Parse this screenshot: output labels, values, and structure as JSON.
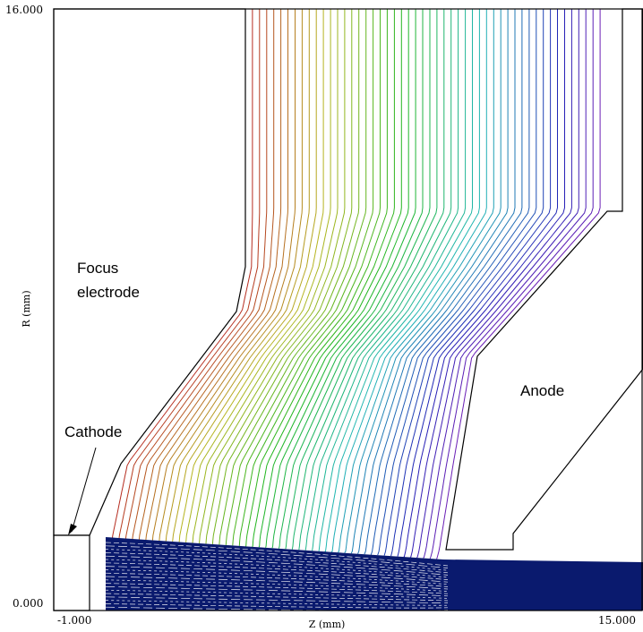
{
  "axes": {
    "xlabel": "Z (mm)",
    "ylabel": "R (mm)",
    "x_ticks": [
      "-1.000",
      "15.000"
    ],
    "y_ticks": [
      "16.000",
      "0.000"
    ],
    "xlim": [
      -1.0,
      15.0
    ],
    "ylim": [
      0.0,
      16.0
    ]
  },
  "labels": {
    "focus_line1": "Focus",
    "focus_line2": "electrode",
    "anode": "Anode",
    "cathode": "Cathode"
  },
  "colors": {
    "beam": "#0a1a6e",
    "electrode_outline": "#000000",
    "equipotential_start": "#c0392b",
    "equipotential_end": "#5b2a9a"
  },
  "equipotential_count": 50,
  "beam_line_count": 20
}
